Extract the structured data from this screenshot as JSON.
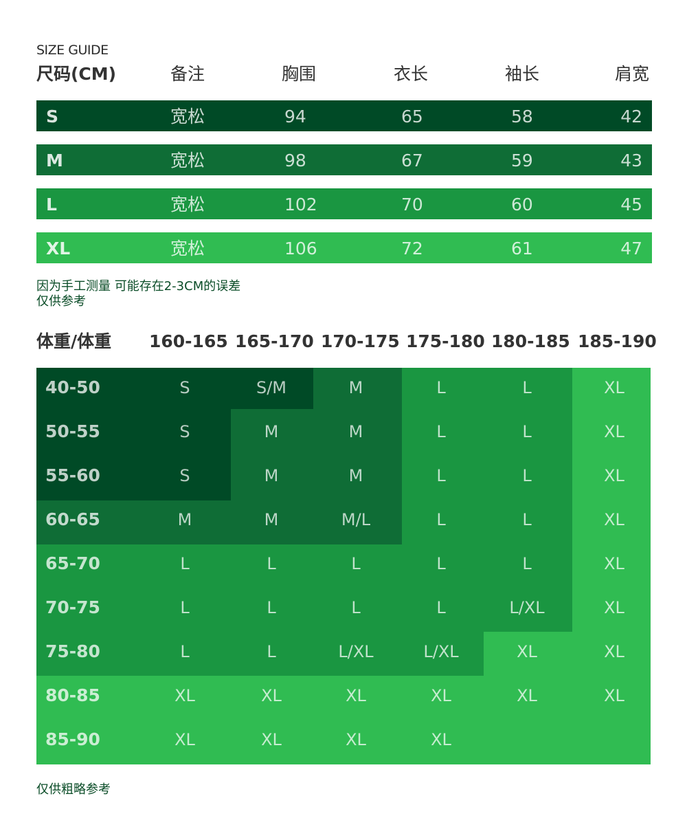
{
  "colors": {
    "darkest": "#004a26",
    "dark": "#0f6d36",
    "mid": "#1a9641",
    "light": "#30bc52",
    "note_text": "#0b4d28"
  },
  "subtitle": "SIZE GUIDE",
  "size_table": {
    "headers": [
      "尺码(CM)",
      "备注",
      "胸围",
      "衣长",
      "袖长",
      "肩宽"
    ],
    "rows": [
      {
        "size": "S",
        "note": "宽松",
        "chest": "94",
        "length": "65",
        "sleeve": "58",
        "shoulder": "42"
      },
      {
        "size": "M",
        "note": "宽松",
        "chest": "98",
        "length": "67",
        "sleeve": "59",
        "shoulder": "43"
      },
      {
        "size": "L",
        "note": "宽松",
        "chest": "102",
        "length": "70",
        "sleeve": "60",
        "shoulder": "45"
      },
      {
        "size": "XL",
        "note": "宽松",
        "chest": "106",
        "length": "72",
        "sleeve": "61",
        "shoulder": "47"
      }
    ]
  },
  "measure_note": [
    "因为手工测量 可能存在2-3CM的误差",
    "仅供参考"
  ],
  "weight_table": {
    "corner_label": "体重/体重",
    "height_headers": [
      "160-165",
      "165-170",
      "170-175",
      "175-180",
      "180-185",
      "185-190"
    ],
    "rows": [
      {
        "weight": "40-50",
        "sizes": [
          "S",
          "S/M",
          "M",
          "L",
          "L",
          "XL"
        ]
      },
      {
        "weight": "50-55",
        "sizes": [
          "S",
          "M",
          "M",
          "L",
          "L",
          "XL"
        ]
      },
      {
        "weight": "55-60",
        "sizes": [
          "S",
          "M",
          "M",
          "L",
          "L",
          "XL"
        ]
      },
      {
        "weight": "60-65",
        "sizes": [
          "M",
          "M",
          "M/L",
          "L",
          "L",
          "XL"
        ]
      },
      {
        "weight": "65-70",
        "sizes": [
          "L",
          "L",
          "L",
          "L",
          "L",
          "XL"
        ]
      },
      {
        "weight": "70-75",
        "sizes": [
          "L",
          "L",
          "L",
          "L",
          "L/XL",
          "XL"
        ]
      },
      {
        "weight": "75-80",
        "sizes": [
          "L",
          "L",
          "L/XL",
          "L/XL",
          "XL",
          "XL"
        ]
      },
      {
        "weight": "80-85",
        "sizes": [
          "XL",
          "XL",
          "XL",
          "XL",
          "XL",
          "XL"
        ]
      },
      {
        "weight": "85-90",
        "sizes": [
          "XL",
          "XL",
          "XL",
          "XL",
          "",
          ""
        ]
      }
    ]
  },
  "footer_note": "仅供粗略参考"
}
